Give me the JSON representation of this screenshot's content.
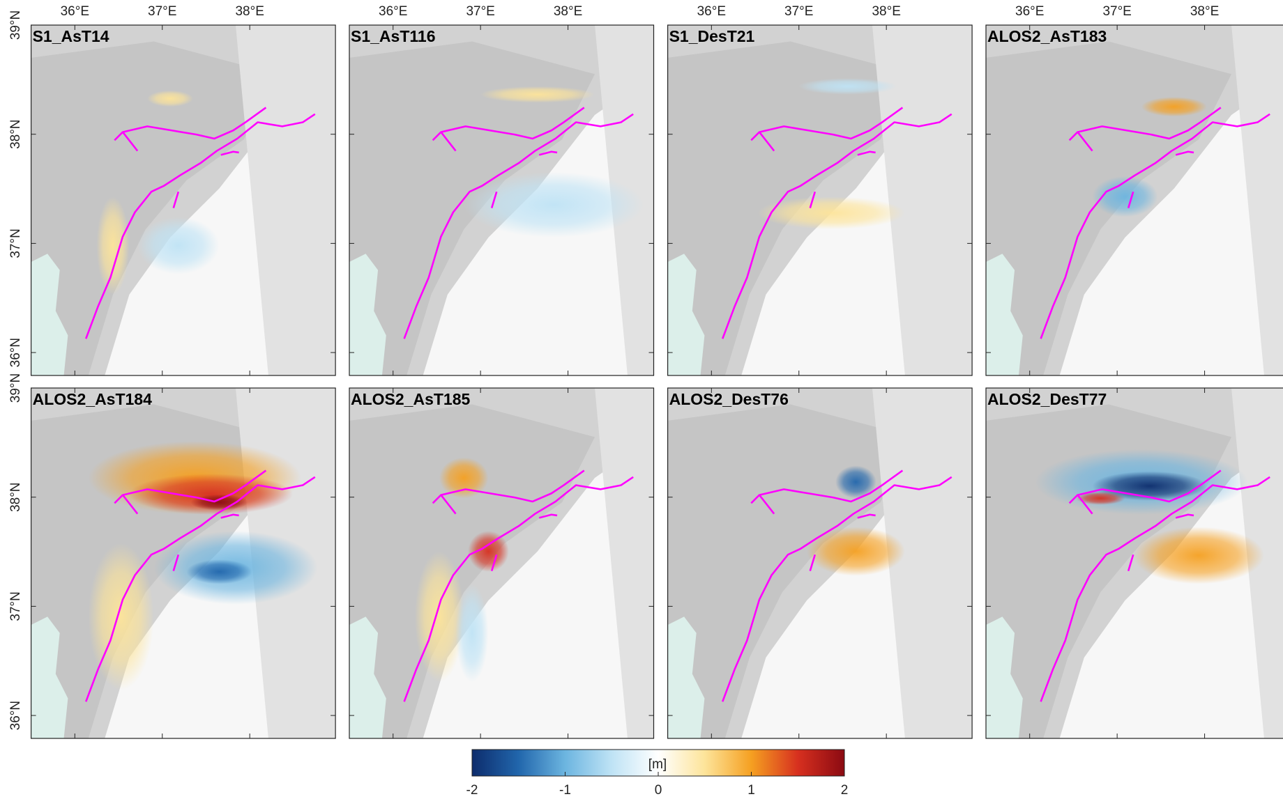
{
  "panels": [
    {
      "title": "S1_AsT14"
    },
    {
      "title": "S1_AsT116"
    },
    {
      "title": "S1_DesT21"
    },
    {
      "title": "ALOS2_AsT183"
    },
    {
      "title": "ALOS2_AsT184"
    },
    {
      "title": "ALOS2_AsT185"
    },
    {
      "title": "ALOS2_DesT76"
    },
    {
      "title": "ALOS2_DesT77"
    }
  ],
  "map": {
    "xlim": [
      35.5,
      38.98
    ],
    "xticks": [
      {
        "value": 36,
        "label": "36°E"
      },
      {
        "value": 37,
        "label": "37°E"
      },
      {
        "value": 38,
        "label": "38°E"
      }
    ],
    "ylim": [
      35.79,
      39.0
    ],
    "yticks": [
      {
        "value": 39,
        "label": "39°N"
      },
      {
        "value": 38,
        "label": "38°N"
      },
      {
        "value": 37,
        "label": "37°N"
      },
      {
        "value": 36,
        "label": "36°N"
      }
    ]
  },
  "colorbar": {
    "label": "[m]",
    "lim": [
      -2,
      2
    ],
    "ticks": [
      -2,
      -1,
      0,
      1,
      2
    ],
    "colors": [
      "#0d2c6c",
      "#2166ac",
      "#6cb5e0",
      "#bfe3f5",
      "#ffffff",
      "#fde49a",
      "#f5a021",
      "#d7301f",
      "#8b0a12"
    ]
  }
}
